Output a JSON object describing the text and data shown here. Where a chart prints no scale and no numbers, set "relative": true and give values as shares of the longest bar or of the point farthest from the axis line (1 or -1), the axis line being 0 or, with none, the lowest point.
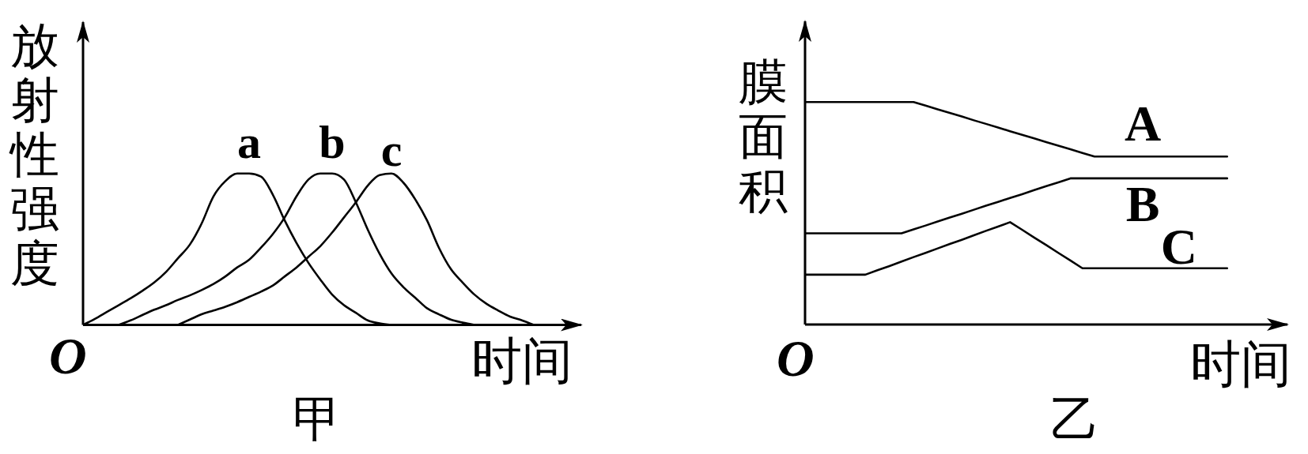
{
  "chart_data": [
    {
      "type": "line",
      "title": "甲",
      "xlabel": "时间",
      "ylabel": "放射性强度",
      "annotations": [
        "O"
      ],
      "relative": true,
      "tick_labels": false,
      "categories": [
        null,
        null,
        null,
        null,
        null,
        null,
        null,
        null,
        null,
        null,
        null,
        null,
        null,
        null,
        null,
        null,
        null,
        null,
        null,
        null,
        null,
        null,
        null,
        null,
        null,
        null,
        null,
        null,
        null,
        null,
        null,
        null,
        null,
        null,
        null,
        null,
        null,
        null,
        null,
        null,
        null,
        null,
        null
      ],
      "series": [
        {
          "name": "a",
          "color": "#000000",
          "values": [
            0,
            0.04,
            0.085,
            0.13,
            0.175,
            0.225,
            0.28,
            0.35,
            0.44,
            0.53,
            0.67,
            0.85,
            0.95,
            1.0,
            1.0,
            0.98,
            0.86,
            0.69,
            0.54,
            0.41,
            0.3,
            0.2,
            0.13,
            0.08,
            0.03,
            0.01,
            0,
            null,
            null,
            null,
            null,
            null,
            null,
            null,
            null,
            null,
            null,
            null,
            null,
            null,
            null,
            null,
            null
          ]
        },
        {
          "name": "b",
          "color": "#000000",
          "values": [
            null,
            null,
            null,
            0,
            0.03,
            0.065,
            0.1,
            0.13,
            0.165,
            0.195,
            0.23,
            0.27,
            0.32,
            0.38,
            0.43,
            0.51,
            0.6,
            0.71,
            0.85,
            0.96,
            1.0,
            1.0,
            0.96,
            0.81,
            0.63,
            0.47,
            0.34,
            0.25,
            0.18,
            0.11,
            0.07,
            0.035,
            0.015,
            0,
            null,
            null,
            null,
            null,
            null,
            null,
            null,
            null,
            null
          ]
        },
        {
          "name": "c",
          "color": "#000000",
          "values": [
            null,
            null,
            null,
            null,
            null,
            null,
            null,
            null,
            0,
            0.035,
            0.07,
            0.095,
            0.12,
            0.15,
            0.185,
            0.22,
            0.26,
            0.32,
            0.38,
            0.45,
            0.52,
            0.61,
            0.71,
            0.81,
            0.92,
            0.99,
            1.0,
            0.94,
            0.83,
            0.69,
            0.51,
            0.37,
            0.28,
            0.2,
            0.14,
            0.095,
            0.055,
            0.03,
            0,
            null,
            null,
            null,
            null
          ]
        }
      ]
    },
    {
      "type": "line",
      "title": "乙",
      "xlabel": "时间",
      "ylabel": "膜面积",
      "annotations": [
        "O"
      ],
      "relative": true,
      "tick_labels": false,
      "categories": [
        null,
        null,
        null,
        null,
        null,
        null,
        null,
        null,
        null,
        null,
        null,
        null,
        null,
        null,
        null,
        null,
        null,
        null,
        null,
        null,
        null,
        null,
        null,
        null,
        null,
        null,
        null,
        null,
        null,
        null,
        null,
        null,
        null,
        null,
        null,
        null,
        null,
        null,
        null,
        null,
        null
      ],
      "series": [
        {
          "name": "A",
          "color": "#000000",
          "values": [
            1,
            1,
            1,
            1,
            1,
            1,
            1,
            1,
            1,
            1,
            0.984,
            0.967,
            0.951,
            0.935,
            0.918,
            0.902,
            0.886,
            0.869,
            0.853,
            0.837,
            0.82,
            0.804,
            0.788,
            0.771,
            0.755,
            0.755,
            0.755,
            0.755,
            0.755,
            0.755,
            0.755,
            0.755,
            0.755,
            0.755,
            0.755,
            0.755,
            null,
            null,
            null,
            null,
            null
          ]
        },
        {
          "name": "B",
          "color": "#000000",
          "values": [
            0.41,
            0.41,
            0.41,
            0.41,
            0.41,
            0.41,
            0.41,
            0.41,
            0.41,
            0.428,
            0.445,
            0.463,
            0.481,
            0.498,
            0.516,
            0.534,
            0.551,
            0.569,
            0.586,
            0.604,
            0.622,
            0.639,
            0.657,
            0.657,
            0.657,
            0.657,
            0.657,
            0.657,
            0.657,
            0.657,
            0.657,
            0.657,
            0.657,
            0.657,
            0.657,
            0.657,
            null,
            null,
            null,
            null,
            null
          ]
        },
        {
          "name": "C",
          "color": "#000000",
          "values": [
            0.224,
            0.224,
            0.224,
            0.224,
            0.224,
            0.224,
            0.244,
            0.263,
            0.283,
            0.303,
            0.322,
            0.342,
            0.362,
            0.381,
            0.401,
            0.421,
            0.44,
            0.46,
            0.426,
            0.391,
            0.357,
            0.322,
            0.288,
            0.253,
            0.253,
            0.253,
            0.253,
            0.253,
            0.253,
            0.253,
            0.253,
            0.253,
            0.253,
            0.253,
            0.253,
            0.253,
            null,
            null,
            null,
            null,
            null
          ]
        }
      ]
    }
  ]
}
